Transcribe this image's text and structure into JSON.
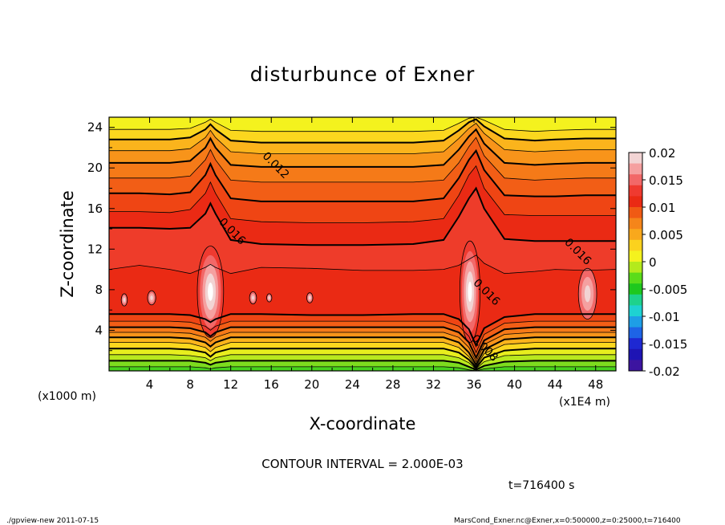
{
  "chart_data": {
    "type": "contour",
    "title": "disturbunce of Exner",
    "xlabel": "X-coordinate",
    "ylabel": "Z-coordinate",
    "x_unit_label": "(x1000 m)",
    "x_scale_label": "(x1E4 m)",
    "xlim": [
      0,
      50
    ],
    "ylim": [
      0,
      25
    ],
    "xticks": [
      "4",
      "8",
      "12",
      "16",
      "20",
      "24",
      "28",
      "32",
      "36",
      "40",
      "44",
      "48"
    ],
    "yticks": [
      "4",
      "8",
      "12",
      "16",
      "20",
      "24"
    ],
    "contour_interval_text": "CONTOUR INTERVAL = 2.000E-03",
    "time_text": "t=716400 s",
    "footer_left": "./gpview-new  2011-07-15",
    "footer_right": "MarsCond_Exner.nc@Exner,x=0:500000,z=0:25000,t=716400",
    "colorbar": {
      "labels": [
        "0.02",
        "0.015",
        "0.01",
        "0.005",
        "0",
        "-0.005",
        "-0.01",
        "-0.015",
        "-0.02"
      ],
      "range": [
        -0.02,
        0.02
      ],
      "colors": [
        "#f2d4d4",
        "#f5a0a0",
        "#f26868",
        "#ef3a30",
        "#ea2a14",
        "#f05a14",
        "#f5851a",
        "#f9a81c",
        "#fbd21e",
        "#f4f21e",
        "#b4ea1c",
        "#5adc1a",
        "#1ec81e",
        "#1ed28c",
        "#1ed2d2",
        "#1e9ee6",
        "#1e64e6",
        "#1e28d2",
        "#1e14b4",
        "#3c14a0"
      ]
    },
    "contour_labels": [
      {
        "text": "0.012",
        "x": 16.2,
        "z": 20.0
      },
      {
        "text": "0.016",
        "x": 11.9,
        "z": 13.5
      },
      {
        "text": "0.016",
        "x": 46.0,
        "z": 11.5
      },
      {
        "text": "0.016",
        "x": 37.0,
        "z": 7.5
      },
      {
        "text": "0.008",
        "x": 36.8,
        "z": 2.0
      }
    ],
    "level_profile": {
      "x": [
        0,
        3,
        6,
        8,
        9.5,
        10,
        10.5,
        12,
        15,
        20,
        25,
        30,
        33,
        34.5,
        35.5,
        36.2,
        37,
        39,
        42,
        44,
        47,
        50
      ],
      "z": [
        [
          0.0,
          0.0,
          0.0,
          0.0,
          0.0,
          0.0,
          0.0,
          0.0,
          0.0,
          0.0,
          0.0,
          0.0,
          0.0,
          0.0,
          0.0,
          0.0,
          0.0,
          0.0,
          0.0,
          0.0,
          0.0,
          0.0
        ],
        [
          0.4,
          0.4,
          0.4,
          0.4,
          0.3,
          0.2,
          0.3,
          0.4,
          0.4,
          0.4,
          0.4,
          0.4,
          0.4,
          0.3,
          0.1,
          0.0,
          0.2,
          0.4,
          0.4,
          0.4,
          0.4,
          0.4
        ],
        [
          1.0,
          1.0,
          1.0,
          1.0,
          0.8,
          0.6,
          0.8,
          1.0,
          1.0,
          1.0,
          1.0,
          1.0,
          1.0,
          0.8,
          0.4,
          0.1,
          0.5,
          0.9,
          1.0,
          1.0,
          1.0,
          1.0
        ],
        [
          1.6,
          1.6,
          1.6,
          1.5,
          1.3,
          1.0,
          1.3,
          1.6,
          1.6,
          1.6,
          1.6,
          1.6,
          1.6,
          1.3,
          0.8,
          0.2,
          0.9,
          1.5,
          1.6,
          1.6,
          1.6,
          1.6
        ],
        [
          2.2,
          2.2,
          2.2,
          2.1,
          1.8,
          1.4,
          1.8,
          2.2,
          2.2,
          2.2,
          2.2,
          2.2,
          2.2,
          1.8,
          1.1,
          0.3,
          1.3,
          2.0,
          2.2,
          2.2,
          2.2,
          2.2
        ],
        [
          2.8,
          2.8,
          2.8,
          2.7,
          2.3,
          1.9,
          2.3,
          2.8,
          2.8,
          2.8,
          2.8,
          2.8,
          2.8,
          2.3,
          1.4,
          0.4,
          1.7,
          2.6,
          2.8,
          2.8,
          2.8,
          2.8
        ],
        [
          3.3,
          3.3,
          3.3,
          3.2,
          2.8,
          2.4,
          2.8,
          3.3,
          3.3,
          3.3,
          3.3,
          3.3,
          3.3,
          2.8,
          1.8,
          0.6,
          2.1,
          3.1,
          3.3,
          3.3,
          3.3,
          3.3
        ],
        [
          3.8,
          3.8,
          3.8,
          3.7,
          3.3,
          2.9,
          3.3,
          3.8,
          3.8,
          3.8,
          3.8,
          3.8,
          3.8,
          3.3,
          2.3,
          0.9,
          2.6,
          3.6,
          3.8,
          3.8,
          3.8,
          3.8
        ],
        [
          4.3,
          4.3,
          4.3,
          4.2,
          3.8,
          3.4,
          3.8,
          4.3,
          4.3,
          4.3,
          4.3,
          4.3,
          4.3,
          3.8,
          2.8,
          1.3,
          3.0,
          4.1,
          4.3,
          4.3,
          4.3,
          4.3
        ],
        [
          4.9,
          4.9,
          4.9,
          4.8,
          4.4,
          4.0,
          4.4,
          4.9,
          4.9,
          4.9,
          4.9,
          4.9,
          4.9,
          4.4,
          3.4,
          1.8,
          3.6,
          4.7,
          4.9,
          4.9,
          4.9,
          4.9
        ],
        [
          5.6,
          5.6,
          5.6,
          5.5,
          5.1,
          4.8,
          5.1,
          5.6,
          5.6,
          5.5,
          5.5,
          5.6,
          5.6,
          5.1,
          4.1,
          2.5,
          4.2,
          5.3,
          5.6,
          5.6,
          5.6,
          5.6
        ],
        [
          10.0,
          10.4,
          10.0,
          9.6,
          10.2,
          10.5,
          10.2,
          9.6,
          10.2,
          10.1,
          9.9,
          9.9,
          10.0,
          10.4,
          11.0,
          11.4,
          10.6,
          9.6,
          9.8,
          10.0,
          9.9,
          10.0
        ],
        [
          14.1,
          14.1,
          14.0,
          14.1,
          15.5,
          16.5,
          15.5,
          12.9,
          12.5,
          12.4,
          12.4,
          12.5,
          12.9,
          15.2,
          17.0,
          18.0,
          16.0,
          13.0,
          12.8,
          12.8,
          12.8,
          12.8
        ],
        [
          15.7,
          15.7,
          15.6,
          15.9,
          17.5,
          18.6,
          17.5,
          15.0,
          14.7,
          14.6,
          14.6,
          14.7,
          15.0,
          17.3,
          19.3,
          20.2,
          18.0,
          15.4,
          15.3,
          15.3,
          15.3,
          15.3
        ],
        [
          17.5,
          17.5,
          17.4,
          17.6,
          19.3,
          20.4,
          19.3,
          17.0,
          16.7,
          16.7,
          16.7,
          16.7,
          17.0,
          19.0,
          20.8,
          21.7,
          19.8,
          17.3,
          17.2,
          17.2,
          17.3,
          17.3
        ],
        [
          19.0,
          19.0,
          19.0,
          19.2,
          20.8,
          21.8,
          20.8,
          18.8,
          18.6,
          18.6,
          18.6,
          18.6,
          18.8,
          20.5,
          22.1,
          23.0,
          21.2,
          19.0,
          18.8,
          18.9,
          19.0,
          19.0
        ],
        [
          20.5,
          20.5,
          20.5,
          20.7,
          22.0,
          22.9,
          22.0,
          20.3,
          20.1,
          20.1,
          20.1,
          20.1,
          20.3,
          21.8,
          23.1,
          23.8,
          22.4,
          20.5,
          20.3,
          20.4,
          20.5,
          20.5
        ],
        [
          21.7,
          21.7,
          21.7,
          21.9,
          23.0,
          23.7,
          23.0,
          21.6,
          21.4,
          21.4,
          21.4,
          21.4,
          21.6,
          22.9,
          23.9,
          24.4,
          23.4,
          21.8,
          21.6,
          21.7,
          21.8,
          21.8
        ],
        [
          22.8,
          22.8,
          22.8,
          23.0,
          23.8,
          24.3,
          23.8,
          22.7,
          22.5,
          22.5,
          22.5,
          22.5,
          22.7,
          23.7,
          24.5,
          24.8,
          24.1,
          22.9,
          22.7,
          22.8,
          22.9,
          22.9
        ],
        [
          23.8,
          23.8,
          23.8,
          23.9,
          24.5,
          24.8,
          24.5,
          23.7,
          23.6,
          23.6,
          23.6,
          23.6,
          23.7,
          24.4,
          24.9,
          25.0,
          24.7,
          23.8,
          23.6,
          23.7,
          23.8,
          23.8
        ],
        [
          24.6,
          24.6,
          24.6,
          24.7,
          25.0,
          25.0,
          25.0,
          24.5,
          24.4,
          24.4,
          24.4,
          24.4,
          24.5,
          24.9,
          25.0,
          25.0,
          25.0,
          24.5,
          24.3,
          24.4,
          24.6,
          24.6
        ]
      ],
      "band_colors": [
        "#46d21e",
        "#7ddc1e",
        "#b9e81e",
        "#e8ee1e",
        "#fbd71e",
        "#fbb41c",
        "#f8941a",
        "#f57a18",
        "#f25e16",
        "#ef4514",
        "#ea2a14",
        "#ee3c2a",
        "#ea2a14",
        "#ef4514",
        "#f25e16",
        "#f57a18",
        "#f8941a",
        "#fbb41c",
        "#fbd71e",
        "#f4f21e"
      ],
      "thick_lines": [
        2,
        4,
        6,
        8,
        10,
        12,
        14,
        16,
        18
      ]
    },
    "high_cores": [
      {
        "x": 10.0,
        "z": 7.8,
        "rx": 1.3,
        "rz": 4.5
      },
      {
        "x": 35.6,
        "z": 7.8,
        "rx": 1.0,
        "rz": 5.0
      },
      {
        "x": 47.2,
        "z": 7.6,
        "rx": 0.9,
        "rz": 2.5
      },
      {
        "x": 1.5,
        "z": 7.0,
        "rx": 0.3,
        "rz": 0.6
      },
      {
        "x": 4.2,
        "z": 7.2,
        "rx": 0.4,
        "rz": 0.7
      },
      {
        "x": 14.2,
        "z": 7.2,
        "rx": 0.35,
        "rz": 0.6
      },
      {
        "x": 15.8,
        "z": 7.2,
        "rx": 0.25,
        "rz": 0.4
      },
      {
        "x": 19.8,
        "z": 7.2,
        "rx": 0.3,
        "rz": 0.5
      }
    ]
  }
}
